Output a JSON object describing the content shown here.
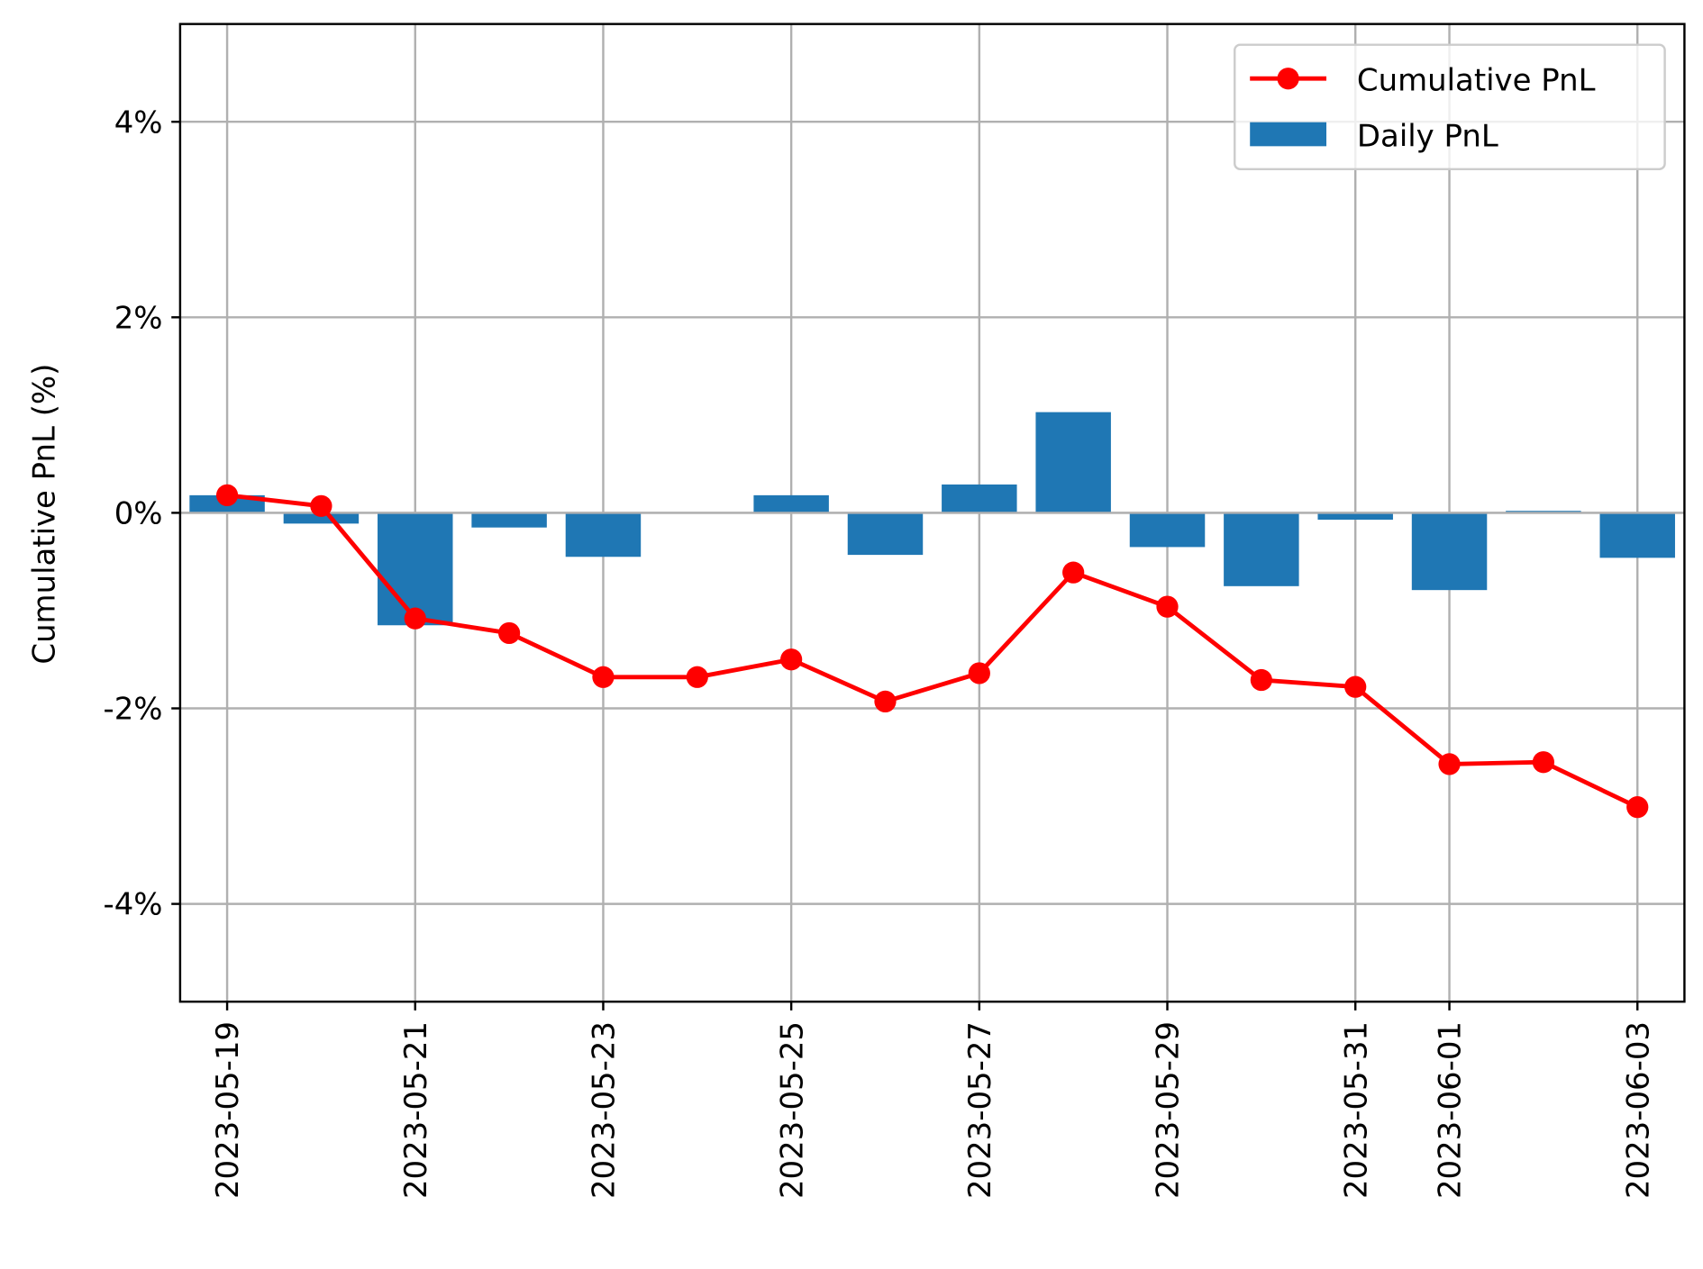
{
  "chart_data": {
    "type": "bar+line",
    "title": "",
    "xlabel": "",
    "ylabel": "Cumulative PnL (%)",
    "ylim": [
      -5,
      5
    ],
    "yticks": [
      -4,
      -2,
      0,
      2,
      4
    ],
    "ytick_labels": [
      "-4%",
      "-2%",
      "0%",
      "2%",
      "4%"
    ],
    "grid": true,
    "legend_position": "top-right",
    "dates": [
      "2023-05-19",
      "2023-05-20",
      "2023-05-21",
      "2023-05-22",
      "2023-05-23",
      "2023-05-24",
      "2023-05-25",
      "2023-05-26",
      "2023-05-27",
      "2023-05-28",
      "2023-05-29",
      "2023-05-30",
      "2023-05-31",
      "2023-06-01",
      "2023-06-02",
      "2023-06-03"
    ],
    "xtick_labels": [
      "2023-05-19",
      "2023-05-21",
      "2023-05-23",
      "2023-05-25",
      "2023-05-27",
      "2023-05-29",
      "2023-05-31",
      "2023-06-01",
      "2023-06-03"
    ],
    "series": [
      {
        "name": "Cumulative PnL",
        "type": "line",
        "color": "#ff0000",
        "values": [
          0.18,
          0.07,
          -1.08,
          -1.23,
          -1.68,
          -1.68,
          -1.5,
          -1.93,
          -1.64,
          -0.61,
          -0.96,
          -1.71,
          -1.78,
          -2.57,
          -2.55,
          -3.01
        ]
      },
      {
        "name": "Daily PnL",
        "type": "bar",
        "color": "#1f77b4",
        "values": [
          0.18,
          -0.11,
          -1.15,
          -0.15,
          -0.45,
          0.0,
          0.18,
          -0.43,
          0.29,
          1.03,
          -0.35,
          -0.75,
          -0.07,
          -0.79,
          0.02,
          -0.46
        ]
      }
    ]
  }
}
